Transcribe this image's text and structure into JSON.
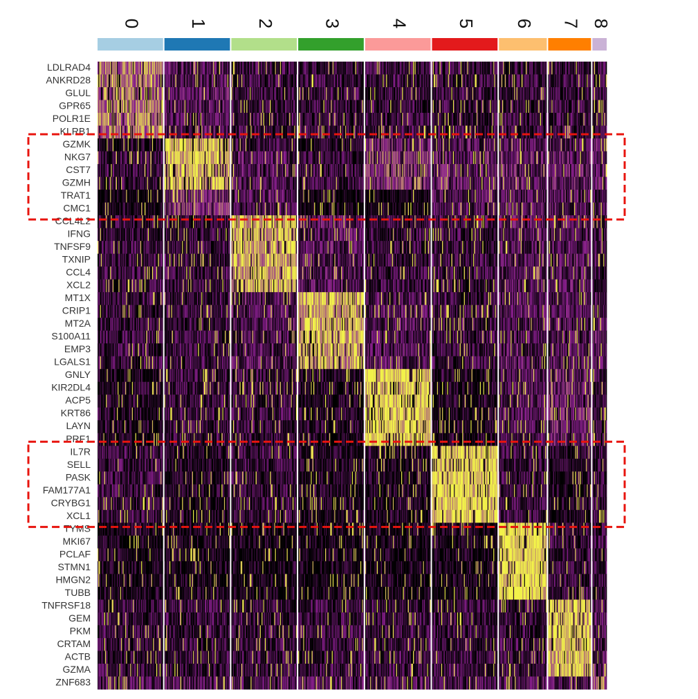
{
  "chart_data": {
    "type": "heatmap",
    "title": "",
    "xlabel": "",
    "ylabel": "",
    "legend": "none",
    "color_scale": {
      "low": "#000000",
      "mid": "#8a1f8f",
      "high": "#f2f24a"
    },
    "clusters": [
      {
        "name": "0",
        "color": "#a6cee3",
        "cells": 78
      },
      {
        "name": "1",
        "color": "#1f78b4",
        "cells": 78
      },
      {
        "name": "2",
        "color": "#b2df8a",
        "cells": 78
      },
      {
        "name": "3",
        "color": "#33a02c",
        "cells": 78
      },
      {
        "name": "4",
        "color": "#fb9a99",
        "cells": 78
      },
      {
        "name": "5",
        "color": "#e31a1c",
        "cells": 78
      },
      {
        "name": "6",
        "color": "#fdbf6f",
        "cells": 57
      },
      {
        "name": "7",
        "color": "#ff7f00",
        "cells": 51
      },
      {
        "name": "8",
        "color": "#cab2d6",
        "cells": 17
      }
    ],
    "genes": [
      "LDLRAD4",
      "ANKRD28",
      "GLUL",
      "GPR65",
      "POLR1E",
      "KLRB1",
      "GZMK",
      "NKG7",
      "CST7",
      "GZMH",
      "TRAT1",
      "CMC1",
      "CCL4L2",
      "IFNG",
      "TNFSF9",
      "TXNIP",
      "CCL4",
      "XCL2",
      "MT1X",
      "CRIP1",
      "MT2A",
      "S100A11",
      "EMP3",
      "LGALS1",
      "GNLY",
      "KIR2DL4",
      "ACP5",
      "KRT86",
      "LAYN",
      "PRF1",
      "IL7R",
      "SELL",
      "PASK",
      "FAM177A1",
      "CRYBG1",
      "XCL1",
      "TYMS",
      "MKI67",
      "PCLAF",
      "STMN1",
      "HMGN2",
      "TUBB",
      "TNFRSF18",
      "GEM",
      "PKM",
      "CRTAM",
      "ACTB",
      "GZMA",
      "ZNF683"
    ],
    "mean_expression": [
      [
        0.7,
        0.3,
        0.2,
        0.2,
        0.2,
        0.2,
        0.2,
        0.2,
        0.2
      ],
      [
        0.7,
        0.3,
        0.2,
        0.2,
        0.2,
        0.2,
        0.2,
        0.2,
        0.2
      ],
      [
        0.7,
        0.3,
        0.2,
        0.2,
        0.2,
        0.2,
        0.2,
        0.2,
        0.2
      ],
      [
        0.7,
        0.3,
        0.2,
        0.2,
        0.2,
        0.2,
        0.2,
        0.2,
        0.2
      ],
      [
        0.7,
        0.3,
        0.2,
        0.2,
        0.2,
        0.2,
        0.2,
        0.2,
        0.2
      ],
      [
        0.7,
        0.3,
        0.2,
        0.2,
        0.2,
        0.2,
        0.2,
        0.2,
        0.2
      ],
      [
        0.1,
        0.9,
        0.2,
        0.1,
        0.4,
        0.3,
        0.3,
        0.3,
        0.3
      ],
      [
        0.2,
        0.85,
        0.3,
        0.2,
        0.5,
        0.35,
        0.35,
        0.35,
        0.35
      ],
      [
        0.2,
        0.85,
        0.3,
        0.2,
        0.5,
        0.35,
        0.35,
        0.35,
        0.35
      ],
      [
        0.2,
        0.85,
        0.3,
        0.2,
        0.5,
        0.35,
        0.35,
        0.35,
        0.35
      ],
      [
        0.0,
        0.5,
        0.3,
        0.0,
        0.0,
        0.3,
        0.3,
        0.3,
        0.3
      ],
      [
        0.0,
        0.5,
        0.3,
        0.0,
        0.0,
        0.3,
        0.3,
        0.3,
        0.3
      ],
      [
        0.2,
        0.2,
        0.85,
        0.3,
        0.2,
        0.2,
        0.3,
        0.3,
        0.2
      ],
      [
        0.2,
        0.2,
        0.85,
        0.3,
        0.2,
        0.2,
        0.3,
        0.3,
        0.2
      ],
      [
        0.2,
        0.2,
        0.85,
        0.3,
        0.2,
        0.2,
        0.3,
        0.3,
        0.2
      ],
      [
        0.2,
        0.2,
        0.85,
        0.3,
        0.2,
        0.2,
        0.3,
        0.3,
        0.2
      ],
      [
        0.2,
        0.2,
        0.85,
        0.3,
        0.2,
        0.2,
        0.3,
        0.3,
        0.2
      ],
      [
        0.2,
        0.2,
        0.85,
        0.3,
        0.2,
        0.2,
        0.3,
        0.3,
        0.2
      ],
      [
        0.2,
        0.2,
        0.3,
        0.85,
        0.3,
        0.2,
        0.3,
        0.3,
        0.3
      ],
      [
        0.2,
        0.2,
        0.3,
        0.85,
        0.3,
        0.2,
        0.3,
        0.3,
        0.3
      ],
      [
        0.2,
        0.2,
        0.3,
        0.85,
        0.3,
        0.2,
        0.3,
        0.3,
        0.3
      ],
      [
        0.2,
        0.2,
        0.3,
        0.85,
        0.3,
        0.2,
        0.3,
        0.3,
        0.3
      ],
      [
        0.2,
        0.2,
        0.3,
        0.85,
        0.3,
        0.2,
        0.3,
        0.3,
        0.3
      ],
      [
        0.2,
        0.2,
        0.3,
        0.85,
        0.3,
        0.2,
        0.3,
        0.3,
        0.3
      ],
      [
        0.1,
        0.2,
        0.2,
        0.1,
        0.95,
        0.1,
        0.3,
        0.4,
        0.2
      ],
      [
        0.1,
        0.2,
        0.2,
        0.1,
        0.95,
        0.1,
        0.3,
        0.4,
        0.2
      ],
      [
        0.1,
        0.2,
        0.2,
        0.1,
        0.95,
        0.1,
        0.3,
        0.4,
        0.2
      ],
      [
        0.1,
        0.2,
        0.2,
        0.1,
        0.95,
        0.1,
        0.3,
        0.4,
        0.2
      ],
      [
        0.1,
        0.2,
        0.2,
        0.1,
        0.95,
        0.1,
        0.3,
        0.4,
        0.2
      ],
      [
        0.1,
        0.2,
        0.2,
        0.1,
        0.95,
        0.1,
        0.3,
        0.4,
        0.2
      ],
      [
        0.2,
        0.1,
        0.2,
        0.1,
        0.1,
        0.95,
        0.2,
        0.1,
        0.2
      ],
      [
        0.2,
        0.1,
        0.2,
        0.1,
        0.1,
        0.95,
        0.2,
        0.1,
        0.2
      ],
      [
        0.2,
        0.1,
        0.2,
        0.1,
        0.1,
        0.95,
        0.2,
        0.1,
        0.2
      ],
      [
        0.2,
        0.1,
        0.2,
        0.1,
        0.1,
        0.95,
        0.2,
        0.1,
        0.2
      ],
      [
        0.2,
        0.1,
        0.2,
        0.1,
        0.1,
        0.95,
        0.2,
        0.1,
        0.2
      ],
      [
        0.2,
        0.1,
        0.2,
        0.1,
        0.1,
        0.95,
        0.2,
        0.1,
        0.2
      ],
      [
        0.05,
        0.05,
        0.05,
        0.05,
        0.05,
        0.05,
        0.97,
        0.2,
        0.2
      ],
      [
        0.05,
        0.05,
        0.05,
        0.05,
        0.05,
        0.05,
        0.97,
        0.2,
        0.2
      ],
      [
        0.05,
        0.05,
        0.05,
        0.05,
        0.05,
        0.05,
        0.97,
        0.2,
        0.2
      ],
      [
        0.05,
        0.05,
        0.05,
        0.05,
        0.05,
        0.05,
        0.97,
        0.2,
        0.2
      ],
      [
        0.05,
        0.05,
        0.05,
        0.05,
        0.05,
        0.05,
        0.97,
        0.2,
        0.2
      ],
      [
        0.05,
        0.05,
        0.05,
        0.05,
        0.05,
        0.05,
        0.97,
        0.2,
        0.2
      ],
      [
        0.2,
        0.2,
        0.2,
        0.2,
        0.2,
        0.2,
        0.2,
        0.9,
        0.3
      ],
      [
        0.2,
        0.2,
        0.2,
        0.2,
        0.2,
        0.2,
        0.2,
        0.9,
        0.3
      ],
      [
        0.2,
        0.2,
        0.2,
        0.2,
        0.2,
        0.2,
        0.2,
        0.9,
        0.3
      ],
      [
        0.2,
        0.2,
        0.2,
        0.2,
        0.2,
        0.2,
        0.2,
        0.9,
        0.3
      ],
      [
        0.2,
        0.2,
        0.2,
        0.2,
        0.2,
        0.2,
        0.2,
        0.9,
        0.3
      ],
      [
        0.2,
        0.2,
        0.2,
        0.2,
        0.2,
        0.2,
        0.2,
        0.9,
        0.3
      ],
      [
        0.3,
        0.3,
        0.3,
        0.3,
        0.3,
        0.3,
        0.3,
        0.3,
        0.6
      ]
    ],
    "highlight_boxes": [
      {
        "genes_from": "GZMK",
        "genes_to": "CMC1",
        "color": "#e8140e",
        "style": "dashed"
      },
      {
        "genes_from": "IL7R",
        "genes_to": "XCL1",
        "color": "#e8140e",
        "style": "dashed"
      }
    ]
  }
}
